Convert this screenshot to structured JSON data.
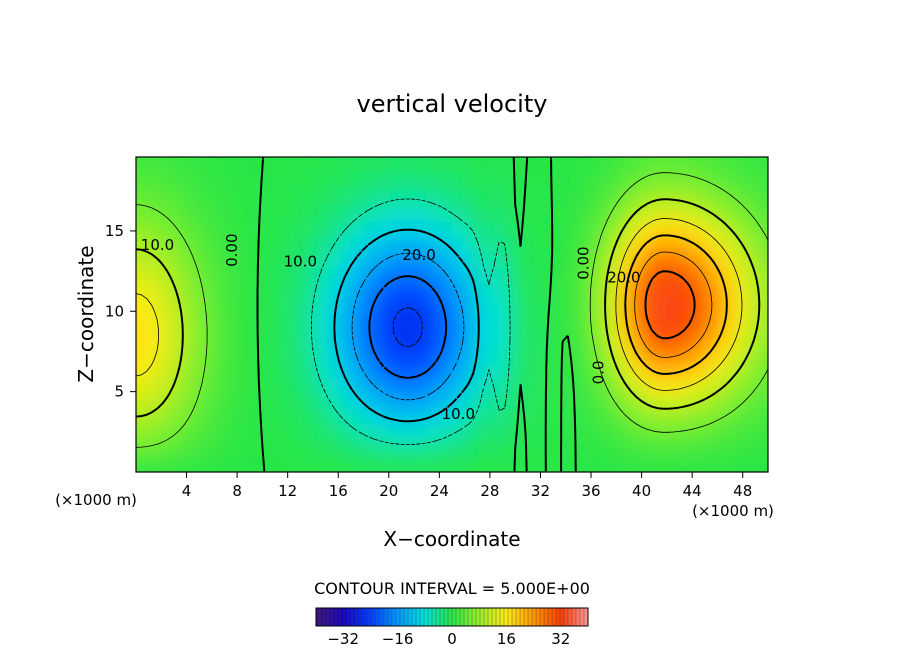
{
  "chart_data": {
    "type": "heatmap",
    "title": "vertical velocity",
    "xlabel": "X−coordinate",
    "ylabel": "Z−coordinate",
    "x_unit_left": "(×1000 m)",
    "x_unit_right": "(×1000 m)",
    "xlim": [
      0,
      50
    ],
    "ylim": [
      0,
      19.6
    ],
    "x_ticks": [
      4,
      8,
      12,
      16,
      20,
      24,
      28,
      32,
      36,
      40,
      44,
      48
    ],
    "y_ticks": [
      5,
      10,
      15
    ],
    "contour_interval_label": "CONTOUR INTERVAL = 5.000E+00",
    "contour_interval": 5,
    "value_range": [
      -40,
      40
    ],
    "colorbar_ticks": [
      -32,
      -16,
      0,
      16,
      32
    ],
    "contour_labels": [
      {
        "text": "10.0",
        "x": 1.7,
        "z": 13.8
      },
      {
        "text": "0.00",
        "x": 8.0,
        "z": 13.8
      },
      {
        "text": "10.0",
        "x": 13.0,
        "z": 12.8
      },
      {
        "text": "20.0",
        "x": 22.4,
        "z": 13.2
      },
      {
        "text": "10.0",
        "x": 25.5,
        "z": 3.3
      },
      {
        "text": "0.00",
        "x": 35.8,
        "z": 13.0
      },
      {
        "text": "20.0",
        "x": 38.6,
        "z": 11.8
      },
      {
        "text": "0.0",
        "x": 37.0,
        "z": 6.2
      }
    ],
    "features": [
      {
        "name": "updraft-left",
        "center_x": 0.0,
        "center_z": 8.0,
        "peak": 16
      },
      {
        "name": "downdraft-center",
        "center_x": 22.0,
        "center_z": 9.0,
        "peak": -26
      },
      {
        "name": "updraft-right",
        "center_x": 42.0,
        "center_z": 10.5,
        "peak": 33
      }
    ]
  }
}
